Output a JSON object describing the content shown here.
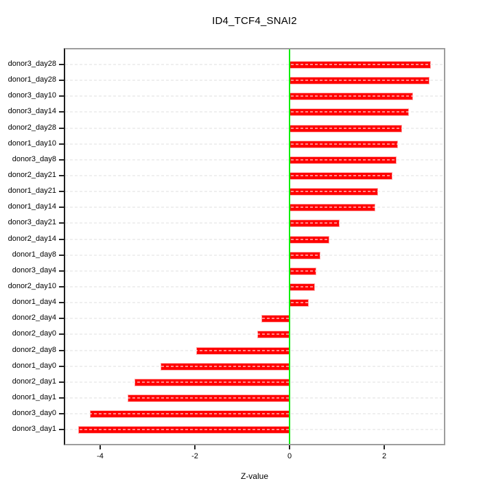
{
  "title": "ID4_TCF4_SNAI2",
  "chart_data": {
    "type": "bar",
    "orientation": "horizontal",
    "title": "ID4_TCF4_SNAI2",
    "xlabel": "Z-value",
    "categories": [
      "donor3_day28",
      "donor1_day28",
      "donor3_day10",
      "donor3_day14",
      "donor2_day28",
      "donor1_day10",
      "donor3_day8",
      "donor2_day21",
      "donor1_day21",
      "donor1_day14",
      "donor3_day21",
      "donor2_day14",
      "donor1_day8",
      "donor3_day4",
      "donor2_day10",
      "donor1_day4",
      "donor2_day4",
      "donor2_day0",
      "donor2_day8",
      "donor1_day0",
      "donor2_day1",
      "donor1_day1",
      "donor3_day0",
      "donor3_day1"
    ],
    "values": [
      2.98,
      2.96,
      2.61,
      2.52,
      2.37,
      2.29,
      2.26,
      2.18,
      1.87,
      1.81,
      1.06,
      0.84,
      0.65,
      0.57,
      0.54,
      0.41,
      -0.59,
      -0.68,
      -1.97,
      -2.72,
      -3.28,
      -3.42,
      -4.22,
      -4.46
    ],
    "x_ticks": [
      -4,
      -2,
      0,
      2
    ],
    "xlim": [
      -4.75,
      3.27
    ],
    "grid": true,
    "legend_position": "none",
    "bar_color": "#ff0000",
    "zero_line_color": "#00ee00",
    "grid_dash_color": "#dcdcdc",
    "box_border_color": "#9c9c9c",
    "axis_line_color": "#1c1c1c",
    "background_color": "#ffffff"
  }
}
